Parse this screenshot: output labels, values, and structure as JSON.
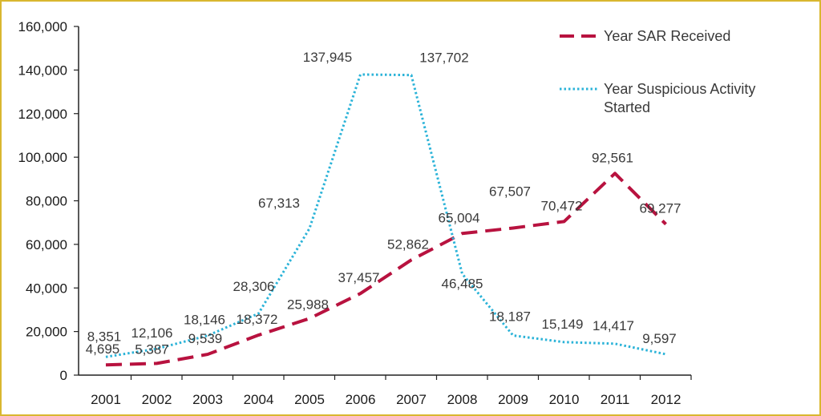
{
  "chart_data": {
    "type": "line",
    "categories": [
      "2001",
      "2002",
      "2003",
      "2004",
      "2005",
      "2006",
      "2007",
      "2008",
      "2009",
      "2010",
      "2011",
      "2012"
    ],
    "ylim": [
      0,
      160000
    ],
    "yticks": [
      "0",
      "20,000",
      "40,000",
      "60,000",
      "80,000",
      "100,000",
      "120,000",
      "140,000",
      "160,000"
    ],
    "grid": false,
    "legend_position": "top-right",
    "series": [
      {
        "name": "Year SAR Received",
        "color": "#b8123f",
        "style": "dashed",
        "values": [
          4695,
          5387,
          9539,
          18372,
          25988,
          37457,
          52862,
          65004,
          67507,
          70472,
          92561,
          69277
        ],
        "labels": [
          "4,695",
          "5,387",
          "9,539",
          "18,372",
          "25,988",
          "37,457",
          "52,862",
          "65,004",
          "67,507",
          "70,472",
          "92,561",
          "69,277"
        ]
      },
      {
        "name": "Year Suspicious Activity Started",
        "name_lines": [
          "Year Suspicious Activity",
          "Started"
        ],
        "color": "#2bb3d8",
        "style": "dotted",
        "values": [
          8351,
          12106,
          18146,
          28306,
          67313,
          137945,
          137702,
          46485,
          18187,
          15149,
          14417,
          9597
        ],
        "labels": [
          "8,351",
          "12,106",
          "18,146",
          "28,306",
          "67,313",
          "137,945",
          "137,702",
          "46,485",
          "18,187",
          "15,149",
          "14,417",
          "9,597"
        ]
      }
    ]
  }
}
